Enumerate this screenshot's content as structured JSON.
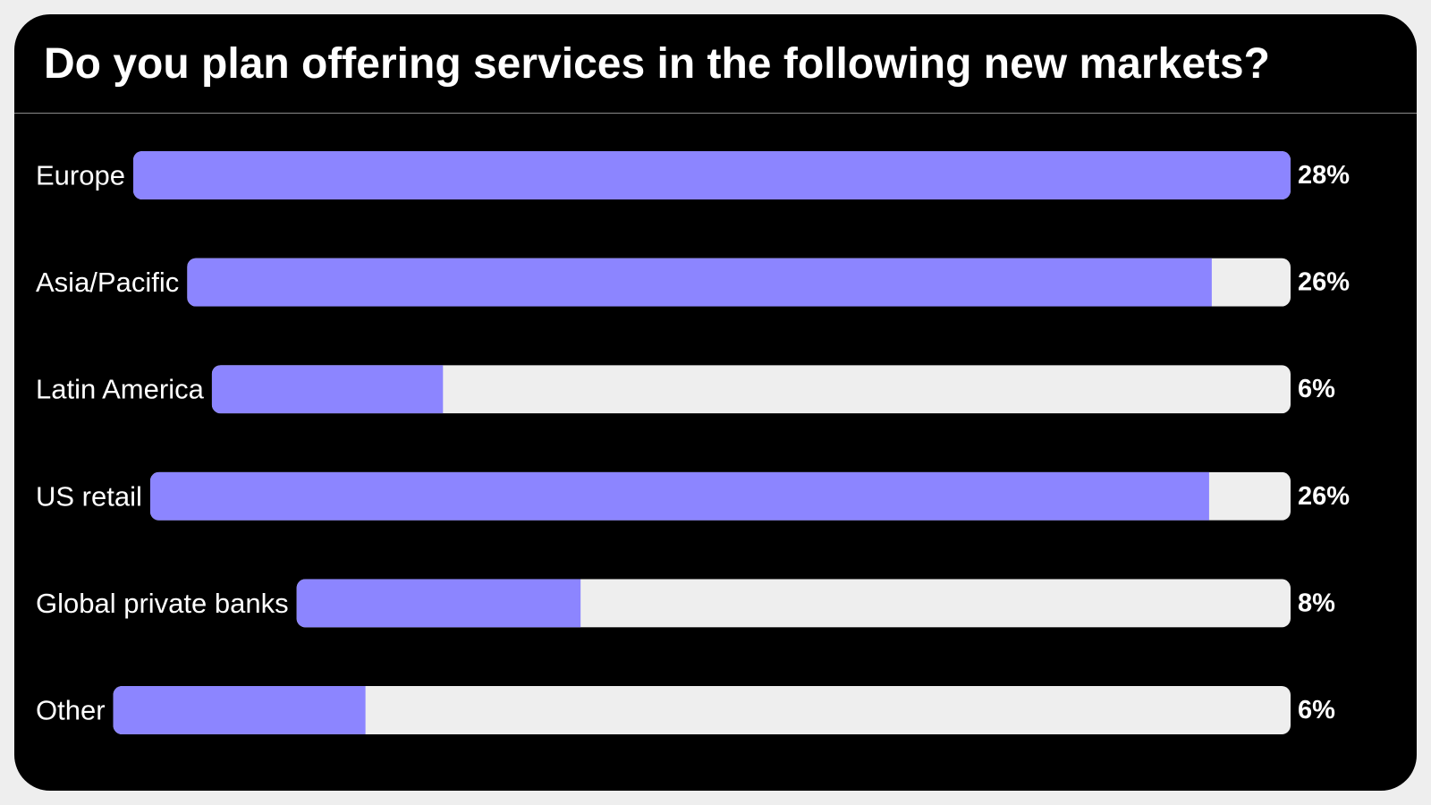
{
  "title": "Do you plan offering services in the following new markets?",
  "colors": {
    "background": "#000000",
    "bar_fill": "#8c85ff",
    "bar_track": "#eeeeee",
    "text": "#ffffff",
    "page": "#eeeeee"
  },
  "chart_data": {
    "type": "bar",
    "orientation": "horizontal",
    "title": "Do you plan offering services in the following new markets?",
    "categories": [
      "Europe",
      "Asia/Pacific",
      "Latin America",
      "US retail",
      "Global private banks",
      "Other"
    ],
    "values": [
      28,
      26,
      6,
      26,
      8,
      6
    ],
    "value_labels": [
      "28%",
      "26%",
      "6%",
      "26%",
      "8%",
      "6%"
    ],
    "unit": "%",
    "xlim": [
      0,
      28
    ],
    "grid": false,
    "legend": "none"
  }
}
